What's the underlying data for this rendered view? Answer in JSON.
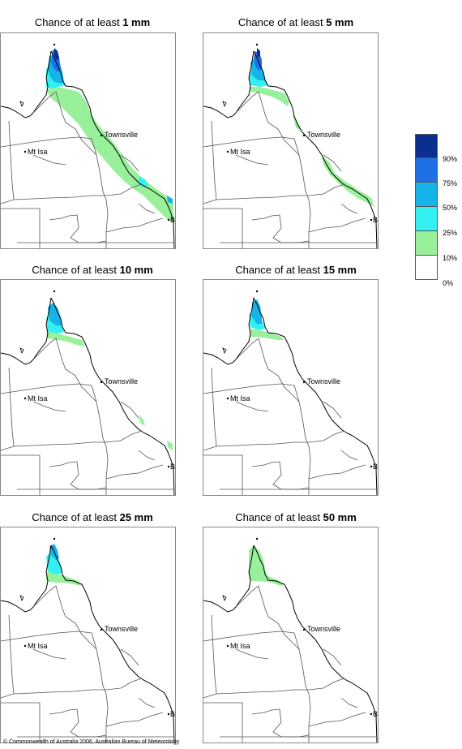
{
  "panels": [
    {
      "prefix": "Chance of at least ",
      "amount": "1 mm"
    },
    {
      "prefix": "Chance of at least ",
      "amount": "5 mm"
    },
    {
      "prefix": "Chance of at least ",
      "amount": "10 mm"
    },
    {
      "prefix": "Chance of at least ",
      "amount": "15 mm"
    },
    {
      "prefix": "Chance of at least ",
      "amount": "25 mm"
    },
    {
      "prefix": "Chance of at least ",
      "amount": "50 mm"
    }
  ],
  "cities": {
    "townsville": "Townsville",
    "mt_isa": "Mt Isa",
    "bris": "BRIS"
  },
  "legend": {
    "labels": [
      "90%",
      "75%",
      "50%",
      "25%",
      "10%",
      "0%"
    ],
    "colors": [
      "#0a2f8f",
      "#1f6fe6",
      "#15b3e8",
      "#33f0f0",
      "#99f09a",
      "#ffffff"
    ]
  },
  "copyright": "© Commonwealth of Australia 2006, Australian Bureau of Meteorology"
}
